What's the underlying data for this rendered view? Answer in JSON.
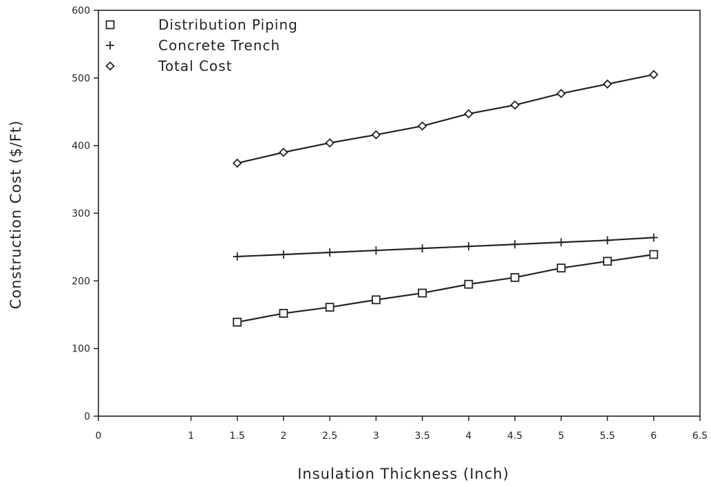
{
  "chart_data": {
    "type": "line",
    "title": "",
    "xlabel": "Insulation Thickness (Inch)",
    "ylabel": "Construction Cost ($/Ft)",
    "xlim": [
      0,
      6.5
    ],
    "ylim": [
      0,
      600
    ],
    "x_ticks": [
      "0",
      "1",
      "1.5",
      "2",
      "2.5",
      "3",
      "3.5",
      "4",
      "4.5",
      "5",
      "5.5",
      "6",
      "6.5"
    ],
    "y_ticks": [
      "0",
      "100",
      "200",
      "300",
      "400",
      "500",
      "600"
    ],
    "grid": false,
    "legend_position": "top-left",
    "x": [
      1.5,
      2,
      2.5,
      3,
      3.5,
      4,
      4.5,
      5,
      5.5,
      6
    ],
    "series": [
      {
        "name": "Distribution Piping",
        "marker": "square",
        "values": [
          139,
          152,
          161,
          172,
          182,
          195,
          205,
          219,
          229,
          239
        ]
      },
      {
        "name": "Concrete Trench",
        "marker": "plus",
        "values": [
          236,
          239,
          242,
          245,
          248,
          251,
          254,
          257,
          260,
          264
        ]
      },
      {
        "name": "Total Cost",
        "marker": "diamond",
        "values": [
          374,
          390,
          404,
          416,
          429,
          447,
          460,
          477,
          491,
          505
        ]
      }
    ]
  }
}
